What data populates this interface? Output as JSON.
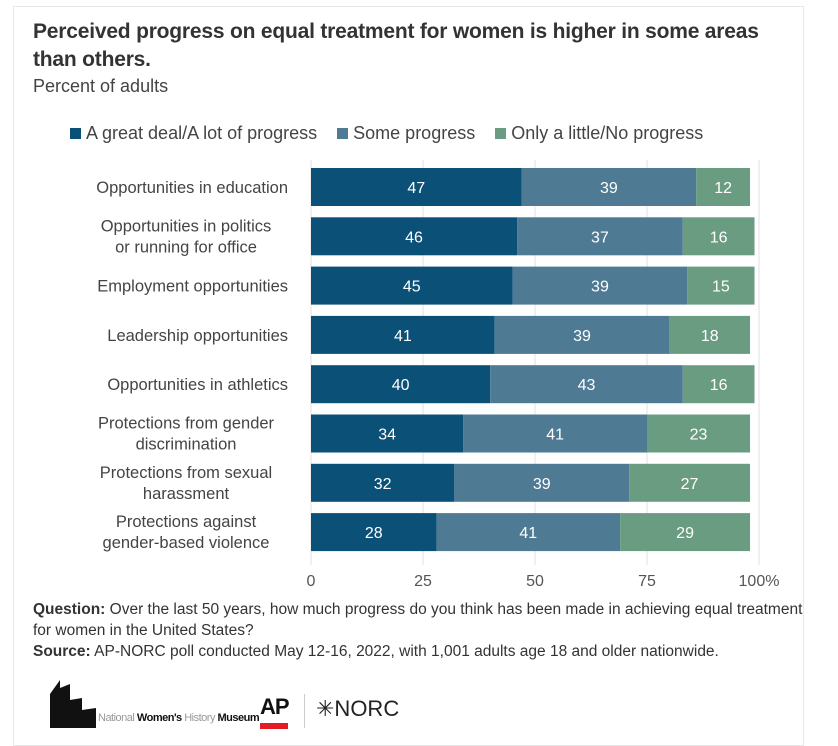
{
  "header": {
    "title": "Perceived progress on equal treatment for women is higher in some areas than others.",
    "subtitle": "Percent of adults"
  },
  "legend": [
    {
      "label": "A great deal/A lot of progress",
      "color": "#0b5077"
    },
    {
      "label": "Some progress",
      "color": "#4e7a94"
    },
    {
      "label": "Only a little/No progress",
      "color": "#6a9c82"
    }
  ],
  "chart_data": {
    "type": "bar",
    "orientation": "horizontal",
    "stacked": true,
    "title": "Perceived progress on equal treatment for women is higher in some areas than others.",
    "subtitle": "Percent of adults",
    "xlabel": "",
    "ylabel": "",
    "xlim": [
      0,
      100
    ],
    "x_ticks": [
      "0",
      "25",
      "50",
      "75",
      "100%"
    ],
    "x_tick_values": [
      0,
      25,
      50,
      75,
      100
    ],
    "grid": true,
    "legend_position": "top",
    "categories": [
      [
        "Opportunities in education"
      ],
      [
        "Opportunities in politics",
        "or running for office"
      ],
      [
        "Employment opportunities"
      ],
      [
        "Leadership opportunities"
      ],
      [
        "Opportunities in athletics"
      ],
      [
        "Protections from gender",
        "discrimination"
      ],
      [
        "Protections from sexual",
        "harassment"
      ],
      [
        "Protections against",
        "gender-based violence"
      ]
    ],
    "series": [
      {
        "name": "A great deal/A lot of progress",
        "color": "#0b5077",
        "values": [
          47,
          46,
          45,
          41,
          40,
          34,
          32,
          28
        ]
      },
      {
        "name": "Some progress",
        "color": "#4e7a94",
        "values": [
          39,
          37,
          39,
          39,
          43,
          41,
          39,
          41
        ]
      },
      {
        "name": "Only a little/No progress",
        "color": "#6a9c82",
        "values": [
          12,
          16,
          15,
          18,
          16,
          23,
          27,
          29
        ]
      }
    ]
  },
  "notes": {
    "question_label": "Question:",
    "question_text": " Over the last 50 years, how much progress do you think has been made in achieving equal treatment for women in the United States?",
    "source_label": "Source:",
    "source_text": " AP-NORC poll conducted May 12-16, 2022, with 1,001 adults age 18 and older nationwide."
  },
  "logos": {
    "nwhm_light": "National ",
    "nwhm_bold1": "Women's ",
    "nwhm_light2": "History ",
    "nwhm_bold2": "Museum",
    "ap": "AP",
    "norc": "✳NORC"
  }
}
